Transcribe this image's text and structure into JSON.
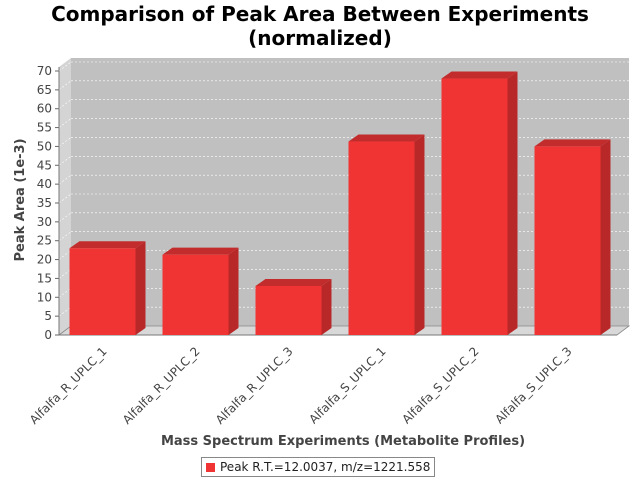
{
  "chart_data": {
    "type": "bar",
    "title": "Comparison of Peak Area Between Experiments\n(normalized)",
    "xlabel": "Mass Spectrum Experiments (Metabolite Profiles)",
    "ylabel": "Peak Area (1e-3)",
    "ylim": [
      0,
      70
    ],
    "yticks": [
      0,
      5,
      10,
      15,
      20,
      25,
      30,
      35,
      40,
      45,
      50,
      55,
      60,
      65,
      70
    ],
    "categories": [
      "Alfalfa_R_UPLC_1",
      "Alfalfa_R_UPLC_2",
      "Alfalfa_R_UPLC_3",
      "Alfalfa_S_UPLC_1",
      "Alfalfa_S_UPLC_2",
      "Alfalfa_S_UPLC_3"
    ],
    "series": [
      {
        "name": "Peak R.T.=12.0037, m/z=1221.558",
        "values": [
          23.0,
          21.3,
          13.0,
          51.3,
          68.0,
          50.0
        ]
      }
    ],
    "grid": true,
    "legend_position": "bottom",
    "colors": {
      "bar": "#f03333",
      "bar_side": "#b82828",
      "bar_top": "#c22c2c",
      "plot_bg": "#c0c0c0"
    }
  }
}
